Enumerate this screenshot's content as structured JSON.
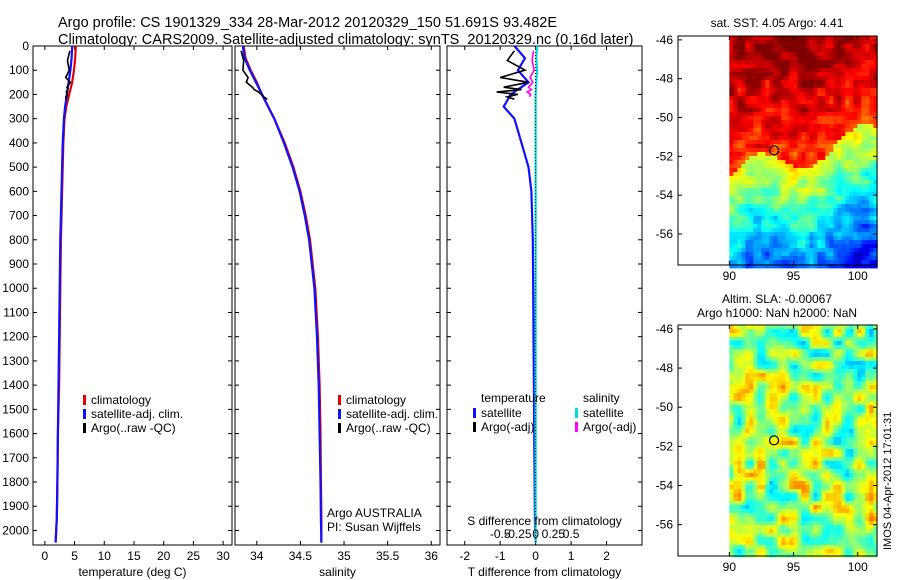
{
  "header": {
    "line1": "Argo profile: CS 1901329_334 28-Mar-2012 20120329_150 51.691S 93.482E",
    "line2": "Climatology: CARS2009. Satellite-adjusted climatology: synTS_20120329.nc (0.16d later)"
  },
  "side_stamp": "IMOS 04-Apr-2012 17:01:31",
  "colors": {
    "clim": "#e00000",
    "sat": "#1010ff",
    "argo": "#000000",
    "sat_s": "#00e0e0",
    "argo_s": "#ff00ff"
  },
  "chart_data": [
    {
      "type": "line",
      "name": "temperature-profile",
      "xlabel": "temperature (deg C)",
      "ylabel": "",
      "xlim": [
        -2,
        31.5
      ],
      "ylim": [
        2060,
        0
      ],
      "xticks": [
        "0",
        "5",
        "10",
        "15",
        "20",
        "25",
        "30"
      ],
      "xtick_values": [
        0,
        5,
        10,
        15,
        20,
        25,
        30
      ],
      "yticks": [
        "0",
        "100",
        "200",
        "300",
        "400",
        "500",
        "600",
        "700",
        "800",
        "900",
        "1000",
        "1100",
        "1200",
        "1300",
        "1400",
        "1500",
        "1600",
        "1700",
        "1800",
        "1900",
        "2000"
      ],
      "ytick_values": [
        0,
        100,
        200,
        300,
        400,
        500,
        600,
        700,
        800,
        900,
        1000,
        1100,
        1200,
        1300,
        1400,
        1500,
        1600,
        1700,
        1800,
        1900,
        2000
      ],
      "legend": [
        "climatology",
        "satellite-adj. clim.",
        "Argo(..raw -QC)"
      ],
      "series": [
        {
          "name": "climatology",
          "key": "clim",
          "x": [
            5.2,
            5.1,
            4.9,
            4.6,
            4.1,
            3.6,
            3.3,
            3.1,
            3.0,
            2.9,
            2.8,
            2.7,
            2.6,
            2.5,
            2.4,
            2.2,
            2.1,
            2.0,
            1.8
          ],
          "y": [
            0,
            50,
            100,
            150,
            200,
            250,
            300,
            400,
            500,
            600,
            700,
            800,
            1000,
            1200,
            1400,
            1600,
            1800,
            1950,
            2050
          ]
        },
        {
          "name": "satellite-adj. clim.",
          "key": "sat",
          "x": [
            4.6,
            4.5,
            4.3,
            4.0,
            3.7,
            3.4,
            3.2,
            3.0,
            2.9,
            2.8,
            2.7,
            2.6,
            2.5,
            2.4,
            2.3,
            2.2,
            2.1,
            2.0,
            1.8
          ],
          "y": [
            0,
            50,
            100,
            150,
            200,
            250,
            300,
            400,
            500,
            600,
            700,
            800,
            1000,
            1200,
            1400,
            1600,
            1800,
            1950,
            2050
          ]
        },
        {
          "name": "Argo(..raw -QC)",
          "key": "argo",
          "x": [
            4.2,
            3.8,
            4.1,
            3.5,
            4.3,
            3.7,
            3.9,
            3.6,
            3.8,
            3.5,
            3.6
          ],
          "y": [
            20,
            60,
            100,
            130,
            150,
            170,
            180,
            190,
            200,
            210,
            220
          ]
        }
      ]
    },
    {
      "type": "line",
      "name": "salinity-profile",
      "xlabel": "salinity",
      "ylabel": "",
      "xlim": [
        33.75,
        36.1
      ],
      "ylim": [
        2060,
        0
      ],
      "xticks": [
        "34",
        "34.5",
        "35",
        "35.5",
        "36"
      ],
      "xtick_values": [
        34,
        34.5,
        35,
        35.5,
        36
      ],
      "legend": [
        "climatology",
        "satellite-adj. clim.",
        "Argo(..raw -QC)"
      ],
      "annotation": [
        "Argo AUSTRALIA",
        "PI: Susan Wijffels"
      ],
      "series": [
        {
          "name": "climatology",
          "key": "clim",
          "x": [
            33.85,
            33.87,
            33.93,
            34.0,
            34.06,
            34.13,
            34.2,
            34.32,
            34.42,
            34.5,
            34.56,
            34.61,
            34.67,
            34.7,
            34.72,
            34.73,
            34.735,
            34.74,
            34.74
          ],
          "y": [
            0,
            50,
            100,
            150,
            200,
            250,
            300,
            400,
            500,
            600,
            700,
            800,
            1000,
            1200,
            1400,
            1600,
            1800,
            1950,
            2050
          ]
        },
        {
          "name": "satellite-adj. clim.",
          "key": "sat",
          "x": [
            33.84,
            33.86,
            33.92,
            33.99,
            34.06,
            34.13,
            34.2,
            34.31,
            34.41,
            34.49,
            34.55,
            34.6,
            34.66,
            34.69,
            34.71,
            34.72,
            34.73,
            34.735,
            34.74
          ],
          "y": [
            0,
            50,
            100,
            150,
            200,
            250,
            300,
            400,
            500,
            600,
            700,
            800,
            1000,
            1200,
            1400,
            1600,
            1800,
            1950,
            2050
          ]
        },
        {
          "name": "Argo(..raw -QC)",
          "key": "argo",
          "x": [
            33.82,
            33.85,
            33.84,
            33.9,
            33.88,
            33.95,
            33.97,
            34.02,
            34.05,
            34.08,
            34.12
          ],
          "y": [
            20,
            60,
            100,
            130,
            150,
            170,
            180,
            190,
            200,
            210,
            220
          ]
        }
      ]
    },
    {
      "type": "line",
      "name": "difference-profile",
      "xlabel": "T difference from climatology",
      "xlabel2": "S difference from climatology",
      "xlim": [
        -2.5,
        3
      ],
      "ylim": [
        2060,
        0
      ],
      "xticks": [
        "-2",
        "-1",
        "0",
        "1",
        "2"
      ],
      "xtick_values": [
        -2,
        -1,
        0,
        1,
        2
      ],
      "xticks_s": [
        "-0.5",
        "-0.25",
        "0",
        "0.25",
        "0.5"
      ],
      "xtick_values_s": [
        -0.5,
        -0.25,
        0,
        0.25,
        0.5
      ],
      "legend_titles": [
        "temperature",
        "salinity"
      ],
      "legend": [
        "satellite",
        "Argo(-adj)",
        "satellite",
        "Argo(-adj)"
      ],
      "series": [
        {
          "name": "satellite",
          "group": "temperature",
          "key": "sat",
          "x": [
            -0.6,
            -0.3,
            -0.5,
            -0.2,
            -0.7,
            -0.9,
            -0.6,
            -0.4,
            -0.2,
            -0.12,
            -0.1,
            -0.08,
            -0.07,
            -0.06,
            -0.05,
            -0.04,
            -0.03,
            -0.02,
            0
          ],
          "y": [
            0,
            50,
            100,
            150,
            200,
            250,
            300,
            400,
            500,
            600,
            700,
            800,
            1000,
            1200,
            1400,
            1600,
            1800,
            1950,
            2050
          ]
        },
        {
          "name": "Argo(-adj)",
          "group": "temperature",
          "key": "argo",
          "x": [
            -0.6,
            -0.8,
            -0.3,
            -1.0,
            -0.2,
            -0.9,
            -0.4,
            -1.1,
            -0.5,
            -0.8,
            -0.6
          ],
          "y": [
            20,
            60,
            100,
            130,
            150,
            170,
            180,
            190,
            200,
            210,
            220
          ]
        },
        {
          "name": "satellite",
          "group": "salinity",
          "key": "sat_s",
          "x": [
            0.02,
            0.01,
            0.02,
            0.01,
            0.0,
            0.0,
            0.0,
            0.0,
            0.0,
            0.0,
            0.0,
            0.0,
            0.0,
            0.0,
            0.0,
            0.0,
            0.0,
            0.0,
            0.0
          ],
          "y": [
            0,
            50,
            100,
            150,
            200,
            250,
            300,
            400,
            500,
            600,
            700,
            800,
            1000,
            1200,
            1400,
            1600,
            1800,
            1950,
            2050
          ]
        },
        {
          "name": "Argo(-adj)",
          "group": "salinity",
          "key": "argo_s",
          "x": [
            -0.03,
            -0.05,
            -0.02,
            -0.08,
            -0.04,
            -0.1,
            -0.06,
            -0.12,
            -0.07,
            -0.09
          ],
          "y": [
            20,
            60,
            100,
            130,
            150,
            170,
            180,
            190,
            200,
            210
          ]
        }
      ]
    },
    {
      "type": "heatmap",
      "name": "sst-map",
      "title": "sat. SST: 4.05 Argo: 4.41",
      "xlim": [
        86,
        101.5
      ],
      "ylim": [
        -57.6,
        -45.8
      ],
      "xticks": [
        "90",
        "95",
        "100"
      ],
      "xtick_values": [
        90,
        95,
        100
      ],
      "yticks": [
        "-46",
        "-48",
        "-50",
        "-52",
        "-54",
        "-56"
      ],
      "ytick_values": [
        -46,
        -48,
        -50,
        -52,
        -54,
        -56
      ],
      "data_lon_min": 90,
      "marker": {
        "lon": 93.482,
        "lat": -51.691
      }
    },
    {
      "type": "heatmap",
      "name": "sla-map",
      "title": "Altim. SLA: -0.00067",
      "subtitle": "Argo h1000: NaN h2000: NaN",
      "xlim": [
        86,
        101.5
      ],
      "ylim": [
        -57.6,
        -45.8
      ],
      "xticks": [
        "90",
        "95",
        "100"
      ],
      "xtick_values": [
        90,
        95,
        100
      ],
      "yticks": [
        "-46",
        "-48",
        "-50",
        "-52",
        "-54",
        "-56"
      ],
      "ytick_values": [
        -46,
        -48,
        -50,
        -52,
        -54,
        -56
      ],
      "data_lon_min": 90,
      "marker": {
        "lon": 93.482,
        "lat": -51.691
      }
    }
  ]
}
